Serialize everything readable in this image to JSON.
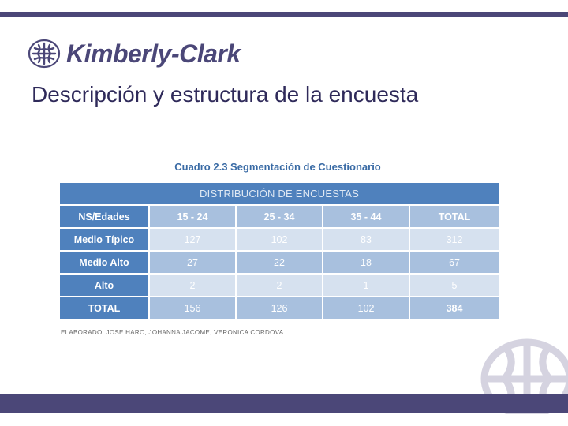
{
  "brand": {
    "name": "Kimberly-Clark",
    "primary_color": "#4b4778",
    "table_color": "#4f81bd"
  },
  "slide": {
    "title": "Descripción y estructura de la encuesta"
  },
  "table": {
    "caption": "Cuadro 2.3 Segmentación de Cuestionario",
    "group_header": "DISTRIBUCIÓN  DE ENCUESTAS",
    "column_headers": [
      "NS/Edades",
      "15 - 24",
      "25 - 34",
      "35 - 44",
      "TOTAL"
    ],
    "rows": [
      {
        "label": "Medio Típico",
        "values": [
          "127",
          "102",
          "83",
          "312"
        ]
      },
      {
        "label": "Medio Alto",
        "values": [
          "27",
          "22",
          "18",
          "67"
        ]
      },
      {
        "label": "Alto",
        "values": [
          "2",
          "2",
          "1",
          "5"
        ]
      },
      {
        "label": "TOTAL",
        "values": [
          "156",
          "126",
          "102",
          "384"
        ]
      }
    ],
    "credit": "ELABORADO: JOSE HARO, JOHANNA JACOME, VERONICA CORDOVA"
  }
}
